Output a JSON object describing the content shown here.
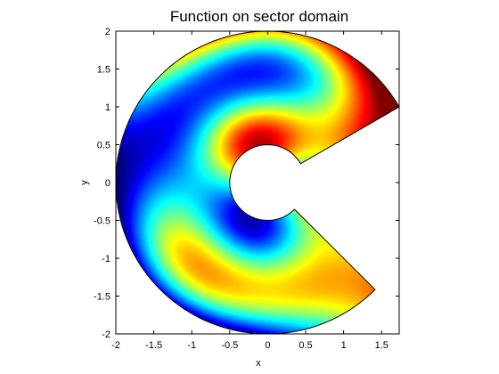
{
  "chart_data": {
    "type": "heatmap",
    "title": "Function on sector domain",
    "xlabel": "x",
    "ylabel": "y",
    "xlim": [
      -2,
      1.732
    ],
    "ylim": [
      -2,
      2
    ],
    "xticks": [
      -2,
      -1.5,
      -1,
      -0.5,
      0,
      0.5,
      1,
      1.5
    ],
    "yticks": [
      -2,
      -1.5,
      -1,
      -0.5,
      0,
      0.5,
      1,
      1.5,
      2
    ],
    "xtick_labels": [
      "-2",
      "-1.5",
      "-1",
      "-0.5",
      "0",
      "0.5",
      "1",
      "1.5"
    ],
    "ytick_labels": [
      "-2",
      "-1.5",
      "-1",
      "-0.5",
      "0",
      "0.5",
      "1",
      "1.5",
      "2"
    ],
    "domain": {
      "shape": "annular sector",
      "inner_radius": 0.5,
      "outer_radius": 2,
      "angle_start_deg": 30,
      "angle_end_deg": 315
    },
    "colormap": "jet",
    "grid": false,
    "legend": false
  }
}
